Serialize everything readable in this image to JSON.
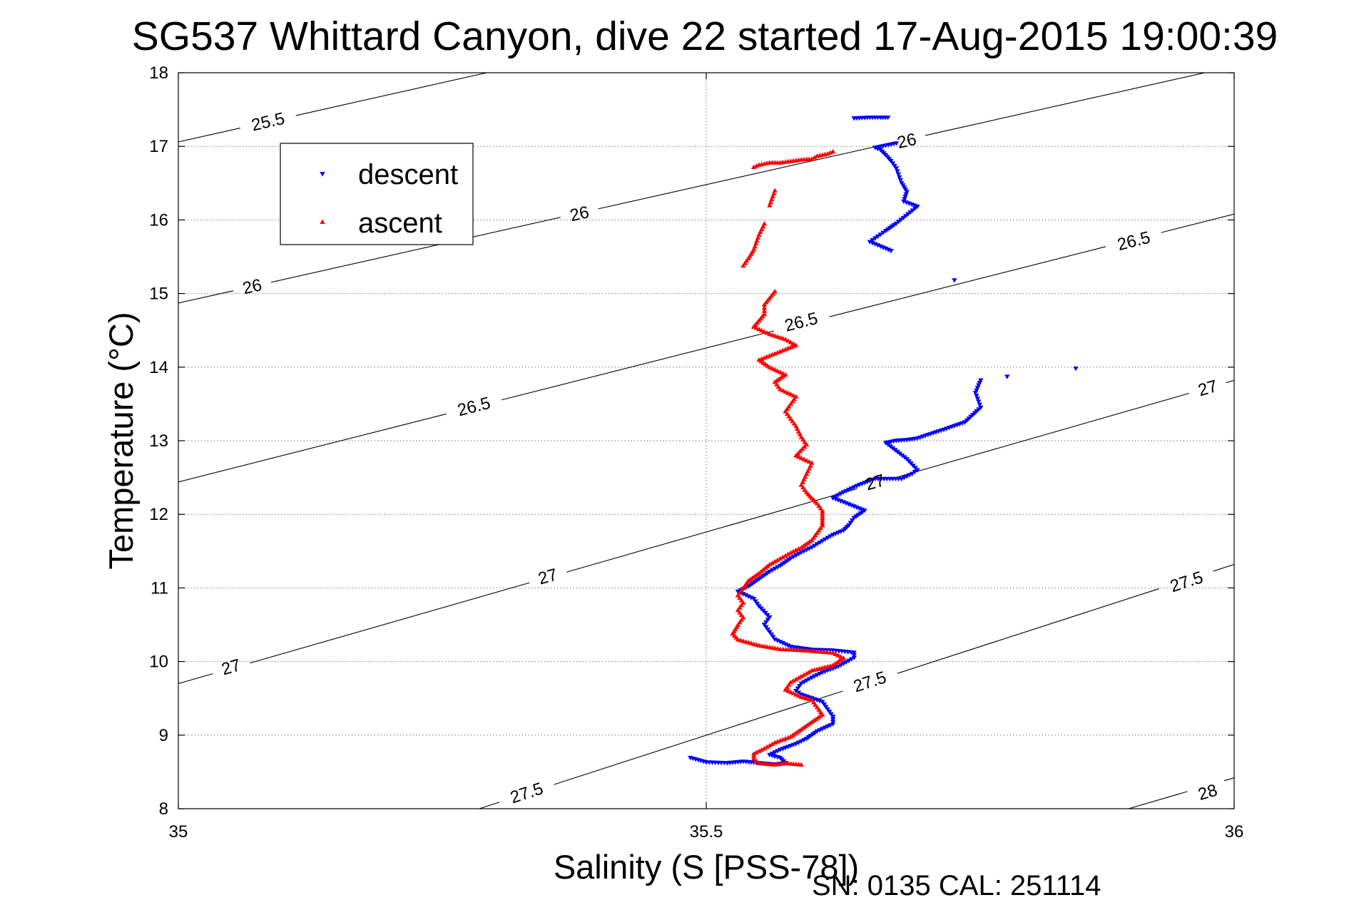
{
  "chart_data": {
    "type": "scatter",
    "title": "SG537 Whittard Canyon, dive 22 started 17-Aug-2015 19:00:39",
    "xlabel": "Salinity (S [PSS-78])",
    "ylabel": "Temperature (°C)",
    "xlim": [
      35,
      36
    ],
    "ylim": [
      8,
      18
    ],
    "xticks": [
      35,
      35.5,
      36
    ],
    "yticks": [
      8,
      9,
      10,
      11,
      12,
      13,
      14,
      15,
      16,
      17,
      18
    ],
    "grid": true,
    "legend_position": "top-left",
    "footer": "SN: 0135  CAL: 251114",
    "density_contours": [
      {
        "sigma": 25.5,
        "x": [
          35.0,
          35.292
        ],
        "y": [
          17.06,
          18.0
        ],
        "label_x": [
          35.085
        ],
        "label_y": [
          17.33
        ],
        "labels": [
          "25.5"
        ]
      },
      {
        "sigma": 26,
        "x": [
          35.0,
          36.0
        ],
        "y": [
          14.87,
          18.09
        ],
        "label_x": [
          35.07,
          35.38,
          35.69
        ],
        "label_y": [
          15.09,
          16.08,
          17.07
        ],
        "labels": [
          "26",
          "26",
          "26"
        ]
      },
      {
        "sigma": 26.5,
        "x": [
          35.0,
          36.0
        ],
        "y": [
          12.44,
          16.08
        ],
        "label_x": [
          35.28,
          35.59,
          35.905
        ],
        "label_y": [
          13.46,
          14.61,
          15.71
        ],
        "labels": [
          "26.5",
          "26.5",
          "26.5"
        ]
      },
      {
        "sigma": 27,
        "x": [
          35.0,
          36.0
        ],
        "y": [
          9.7,
          13.82
        ],
        "label_x": [
          35.05,
          35.35,
          35.66,
          35.975
        ],
        "label_y": [
          9.92,
          11.15,
          12.43,
          13.71
        ],
        "labels": [
          "27",
          "27",
          "27",
          "27"
        ]
      },
      {
        "sigma": 27.5,
        "x": [
          35.285,
          36.0
        ],
        "y": [
          8.0,
          11.32
        ],
        "label_x": [
          35.33,
          35.655,
          35.955
        ],
        "label_y": [
          8.21,
          9.72,
          11.08
        ],
        "labels": [
          "27.5",
          "27.5",
          "27.5"
        ]
      },
      {
        "sigma": 28,
        "x": [
          35.9,
          36.0
        ],
        "y": [
          8.0,
          8.42
        ],
        "label_x": [
          35.975
        ],
        "label_y": [
          8.22
        ],
        "labels": [
          "28"
        ]
      }
    ],
    "series": [
      {
        "name": "descent",
        "color": "#0000ff",
        "marker": "triangle-down",
        "points": [
          [
            35.64,
            17.38
          ],
          [
            35.655,
            17.39
          ],
          [
            35.665,
            17.39
          ],
          [
            35.672,
            17.39
          ],
          [
            35.68,
            17.04
          ],
          [
            35.66,
            16.98
          ],
          [
            35.665,
            16.95
          ],
          [
            35.67,
            16.88
          ],
          [
            35.675,
            16.8
          ],
          [
            35.68,
            16.7
          ],
          [
            35.685,
            16.5
          ],
          [
            35.69,
            16.38
          ],
          [
            35.687,
            16.25
          ],
          [
            35.7,
            16.18
          ],
          [
            35.68,
            15.95
          ],
          [
            35.67,
            15.85
          ],
          [
            35.665,
            15.8
          ],
          [
            35.66,
            15.75
          ],
          [
            35.655,
            15.7
          ],
          [
            35.675,
            15.58
          ],
          [
            35.735,
            15.18
          ],
          [
            35.785,
            13.87
          ],
          [
            35.85,
            13.98
          ],
          [
            35.76,
            13.82
          ],
          [
            35.755,
            13.65
          ],
          [
            35.76,
            13.45
          ],
          [
            35.745,
            13.25
          ],
          [
            35.725,
            13.15
          ],
          [
            35.71,
            13.08
          ],
          [
            35.7,
            13.03
          ],
          [
            35.69,
            13.01
          ],
          [
            35.68,
            13.0
          ],
          [
            35.67,
            12.97
          ],
          [
            35.69,
            12.75
          ],
          [
            35.7,
            12.6
          ],
          [
            35.695,
            12.55
          ],
          [
            35.685,
            12.48
          ],
          [
            35.66,
            12.48
          ],
          [
            35.645,
            12.4
          ],
          [
            35.63,
            12.3
          ],
          [
            35.62,
            12.22
          ],
          [
            35.65,
            12.05
          ],
          [
            35.64,
            11.95
          ],
          [
            35.635,
            11.85
          ],
          [
            35.63,
            11.78
          ],
          [
            35.62,
            11.72
          ],
          [
            35.615,
            11.68
          ],
          [
            35.6,
            11.55
          ],
          [
            35.59,
            11.48
          ],
          [
            35.58,
            11.4
          ],
          [
            35.57,
            11.3
          ],
          [
            35.56,
            11.22
          ],
          [
            35.55,
            11.12
          ],
          [
            35.54,
            11.02
          ],
          [
            35.53,
            10.95
          ],
          [
            35.545,
            10.85
          ],
          [
            35.55,
            10.75
          ],
          [
            35.56,
            10.6
          ],
          [
            35.555,
            10.5
          ],
          [
            35.56,
            10.4
          ],
          [
            35.565,
            10.3
          ],
          [
            35.58,
            10.2
          ],
          [
            35.6,
            10.16
          ],
          [
            35.62,
            10.15
          ],
          [
            35.64,
            10.12
          ],
          [
            35.64,
            10.05
          ],
          [
            35.625,
            9.93
          ],
          [
            35.61,
            9.85
          ],
          [
            35.6,
            9.78
          ],
          [
            35.59,
            9.7
          ],
          [
            35.585,
            9.6
          ],
          [
            35.59,
            9.55
          ],
          [
            35.6,
            9.5
          ],
          [
            35.61,
            9.45
          ],
          [
            35.615,
            9.35
          ],
          [
            35.62,
            9.25
          ],
          [
            35.62,
            9.15
          ],
          [
            35.605,
            9.05
          ],
          [
            35.595,
            8.95
          ],
          [
            35.585,
            8.88
          ],
          [
            35.57,
            8.8
          ],
          [
            35.56,
            8.73
          ],
          [
            35.57,
            8.69
          ],
          [
            35.575,
            8.62
          ],
          [
            35.565,
            8.6
          ],
          [
            35.55,
            8.62
          ],
          [
            35.535,
            8.64
          ],
          [
            35.52,
            8.62
          ],
          [
            35.5,
            8.63
          ],
          [
            35.485,
            8.69
          ]
        ]
      },
      {
        "name": "ascent",
        "color": "#ff0000",
        "marker": "triangle-up",
        "points": [
          [
            35.62,
            16.93
          ],
          [
            35.615,
            16.9
          ],
          [
            35.605,
            16.87
          ],
          [
            35.6,
            16.83
          ],
          [
            35.59,
            16.82
          ],
          [
            35.58,
            16.8
          ],
          [
            35.57,
            16.78
          ],
          [
            35.56,
            16.78
          ],
          [
            35.55,
            16.75
          ],
          [
            35.545,
            16.72
          ],
          [
            35.565,
            16.4
          ],
          [
            35.56,
            16.2
          ],
          [
            35.555,
            15.95
          ],
          [
            35.55,
            15.8
          ],
          [
            35.545,
            15.6
          ],
          [
            35.54,
            15.48
          ],
          [
            35.535,
            15.38
          ],
          [
            35.565,
            15.03
          ],
          [
            35.555,
            14.85
          ],
          [
            35.555,
            14.72
          ],
          [
            35.545,
            14.55
          ],
          [
            35.56,
            14.45
          ],
          [
            35.575,
            14.38
          ],
          [
            35.585,
            14.3
          ],
          [
            35.55,
            14.1
          ],
          [
            35.56,
            14.0
          ],
          [
            35.575,
            13.9
          ],
          [
            35.565,
            13.8
          ],
          [
            35.57,
            13.7
          ],
          [
            35.585,
            13.6
          ],
          [
            35.58,
            13.5
          ],
          [
            35.575,
            13.4
          ],
          [
            35.585,
            13.2
          ],
          [
            35.59,
            13.05
          ],
          [
            35.595,
            12.95
          ],
          [
            35.585,
            12.8
          ],
          [
            35.6,
            12.7
          ],
          [
            35.595,
            12.55
          ],
          [
            35.59,
            12.4
          ],
          [
            35.595,
            12.3
          ],
          [
            35.6,
            12.22
          ],
          [
            35.605,
            12.15
          ],
          [
            35.61,
            12.05
          ],
          [
            35.61,
            11.95
          ],
          [
            35.61,
            11.85
          ],
          [
            35.605,
            11.75
          ],
          [
            35.6,
            11.65
          ],
          [
            35.59,
            11.55
          ],
          [
            35.58,
            11.48
          ],
          [
            35.57,
            11.4
          ],
          [
            35.56,
            11.32
          ],
          [
            35.55,
            11.2
          ],
          [
            35.54,
            11.1
          ],
          [
            35.535,
            11.0
          ],
          [
            35.53,
            10.9
          ],
          [
            35.535,
            10.8
          ],
          [
            35.53,
            10.7
          ],
          [
            35.535,
            10.6
          ],
          [
            35.53,
            10.5
          ],
          [
            35.525,
            10.38
          ],
          [
            35.53,
            10.3
          ],
          [
            35.55,
            10.22
          ],
          [
            35.57,
            10.17
          ],
          [
            35.595,
            10.15
          ],
          [
            35.62,
            10.12
          ],
          [
            35.63,
            10.05
          ],
          [
            35.62,
            9.95
          ],
          [
            35.6,
            9.88
          ],
          [
            35.59,
            9.8
          ],
          [
            35.58,
            9.72
          ],
          [
            35.575,
            9.62
          ],
          [
            35.59,
            9.52
          ],
          [
            35.6,
            9.48
          ],
          [
            35.605,
            9.38
          ],
          [
            35.61,
            9.28
          ],
          [
            35.6,
            9.18
          ],
          [
            35.59,
            9.08
          ],
          [
            35.58,
            8.98
          ],
          [
            35.565,
            8.9
          ],
          [
            35.555,
            8.82
          ],
          [
            35.545,
            8.75
          ],
          [
            35.545,
            8.68
          ],
          [
            35.55,
            8.62
          ],
          [
            35.565,
            8.6
          ],
          [
            35.575,
            8.62
          ],
          [
            35.59,
            8.6
          ]
        ]
      }
    ]
  }
}
